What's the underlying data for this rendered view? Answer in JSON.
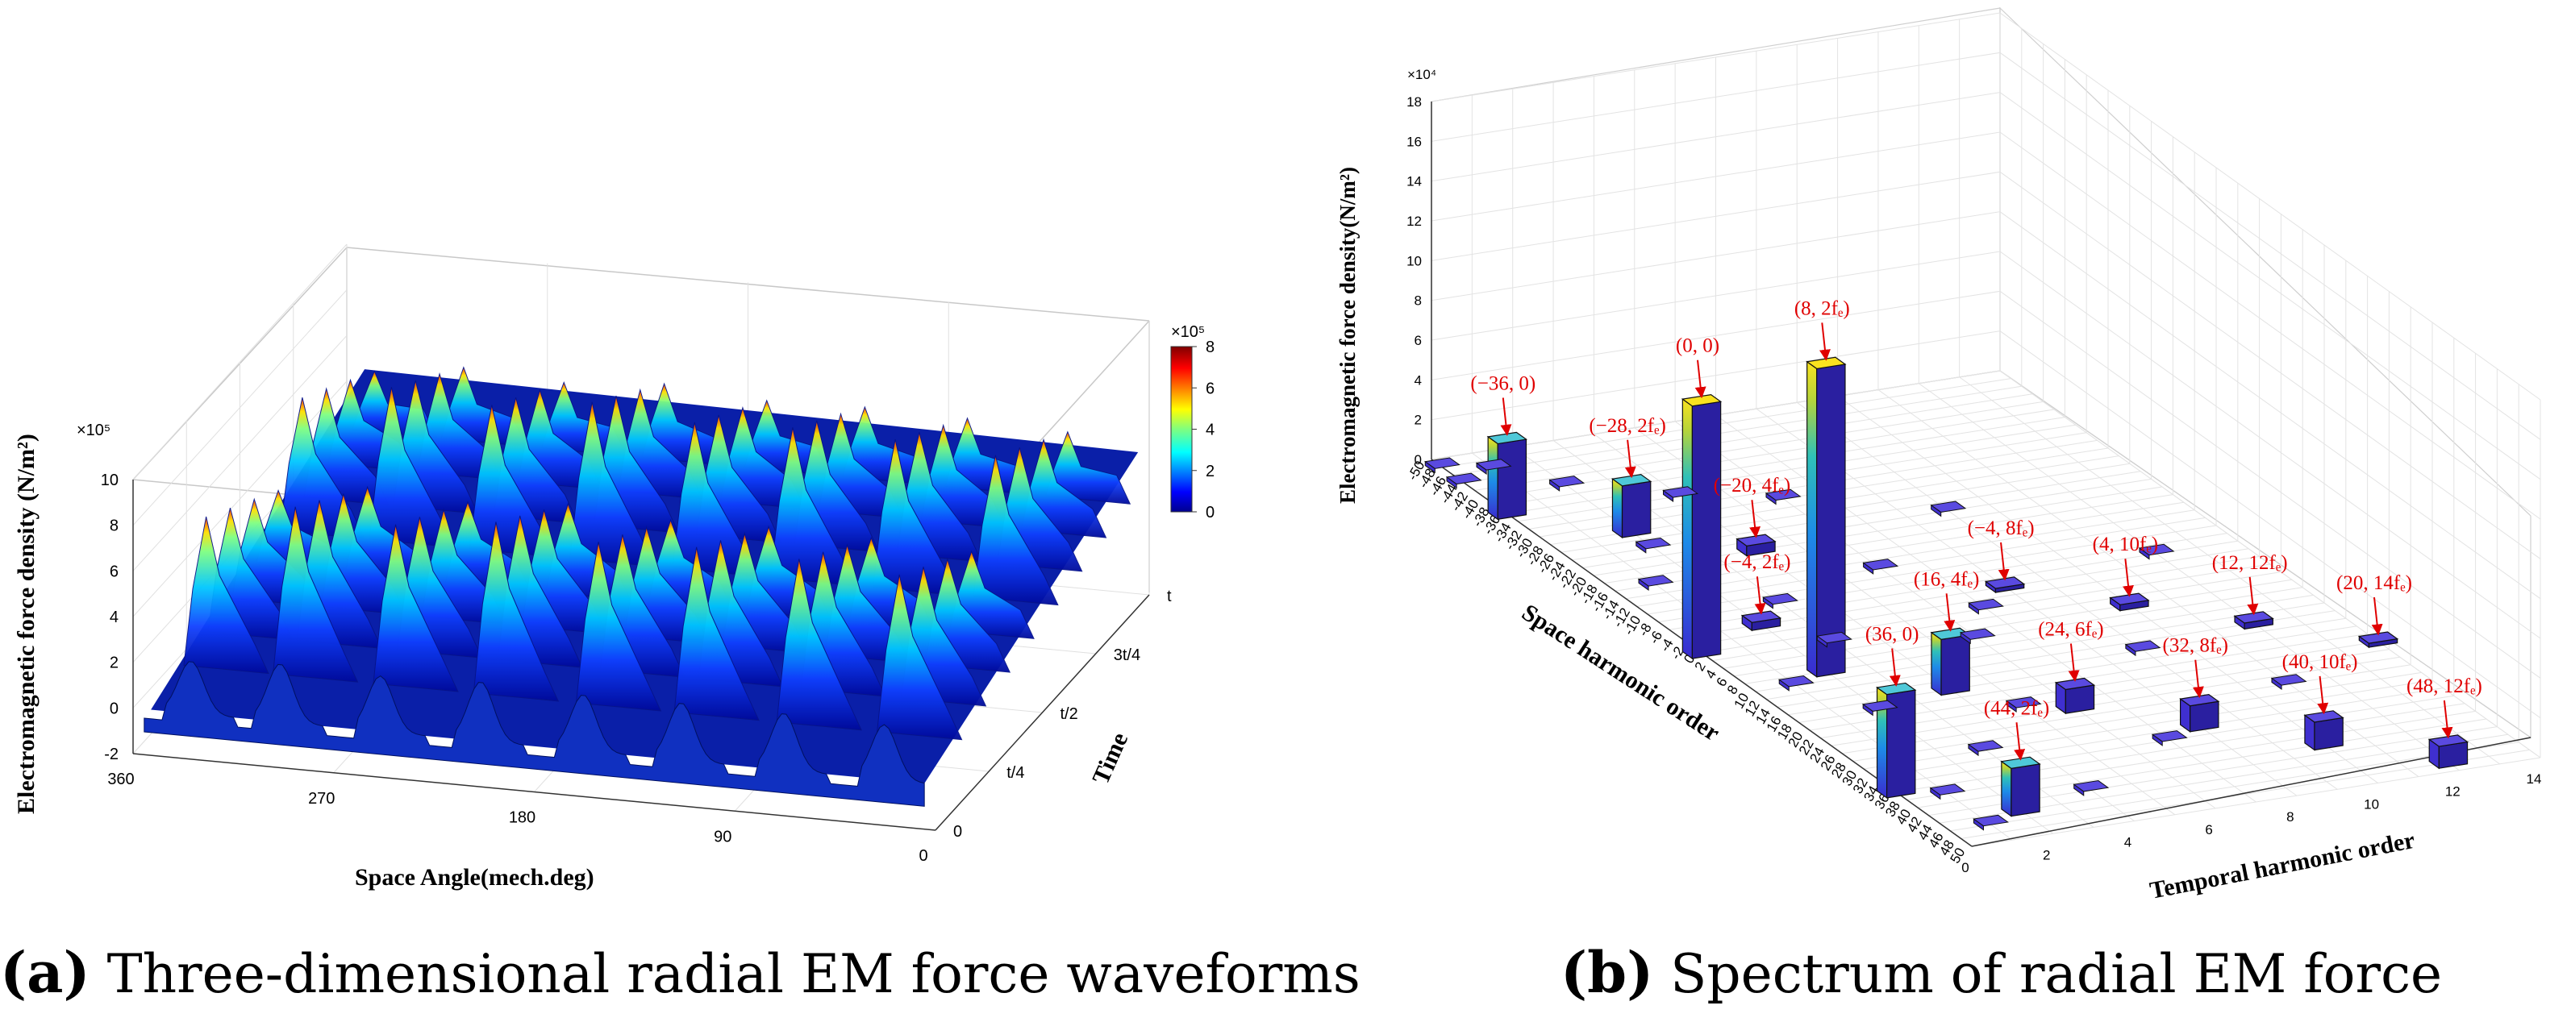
{
  "captions": {
    "a": {
      "letter": "(a)",
      "text": " Three-dimensional radial EM force waveforms"
    },
    "b": {
      "letter": "(b)",
      "text": " Spectrum of radial EM force"
    }
  },
  "chart_data": [
    {
      "panel": "a",
      "type": "area",
      "title": "",
      "xlabel": "Space Angle(mech.deg)",
      "ylabel": "Electromagnetic force density (N/m²)",
      "zlabel": "Time",
      "exponent_label": "×10⁵",
      "x_ticks": [
        "360",
        "270",
        "180",
        "90",
        "0"
      ],
      "y_ticks": [
        "-2",
        "0",
        "2",
        "4",
        "6",
        "8",
        "10"
      ],
      "t_ticks": [
        "0",
        "t/4",
        "t/2",
        "3t/4",
        "t"
      ],
      "xlim": [
        0,
        360
      ],
      "ylim": [
        -2,
        10
      ],
      "colorbar": {
        "exponent_label": "×10⁵",
        "ticks": [
          "0",
          "2",
          "4",
          "6",
          "8"
        ],
        "range": [
          0,
          8
        ],
        "colormap": "jet"
      },
      "series": [
        {
          "x": [
            338,
            298,
            253,
            208,
            162,
            118,
            72,
            27
          ],
          "peak_values": [
            8.2,
            9.1,
            8.7,
            9.3,
            8.8,
            9.0,
            8.9,
            8.6
          ]
        }
      ]
    },
    {
      "panel": "b",
      "type": "bar",
      "title": "",
      "xlabel": "Temporal harmonic order",
      "ylabel": "Electromagnetic force density(N/m²)",
      "zlabel": "Space harmonic order",
      "exponent_label": "×10⁴",
      "z_ticks": [
        "0",
        "2",
        "4",
        "6",
        "8",
        "10",
        "12",
        "14",
        "16",
        "18"
      ],
      "t_ticks": [
        "0",
        "2",
        "4",
        "6",
        "8",
        "10",
        "12",
        "14"
      ],
      "s_ticks": [
        "-50",
        "-48",
        "-46",
        "-44",
        "-42",
        "-40",
        "-38",
        "-36",
        "-34",
        "-32",
        "-30",
        "-28",
        "-26",
        "-24",
        "-22",
        "-20",
        "-18",
        "-16",
        "-14",
        "-12",
        "-10",
        "-8",
        "-6",
        "-4",
        "-2",
        "0",
        "2",
        "4",
        "6",
        "8",
        "10",
        "12",
        "14",
        "16",
        "18",
        "20",
        "22",
        "24",
        "26",
        "28",
        "30",
        "32",
        "34",
        "36",
        "38",
        "40",
        "42",
        "44",
        "46",
        "48",
        "50"
      ],
      "zlim": [
        0,
        18
      ],
      "bars": [
        {
          "space": -36,
          "time": 0,
          "value": 3.8,
          "label": "(−36, 0)"
        },
        {
          "space": -28,
          "time": 2,
          "value": 2.6,
          "label": "(−28, 2fₑ)"
        },
        {
          "space": 0,
          "time": 0,
          "value": 12.7,
          "label": "(0, 0)"
        },
        {
          "space": 8,
          "time": 2,
          "value": 15.5,
          "label": "(8, 2fₑ)"
        },
        {
          "space": -20,
          "time": 4,
          "value": 0.5,
          "label": "(−20, 4fₑ)"
        },
        {
          "space": -4,
          "time": 2,
          "value": 0.4,
          "label": "(−4, 2fₑ)"
        },
        {
          "space": 16,
          "time": 4,
          "value": 2.8,
          "label": "(16, 4fₑ)"
        },
        {
          "space": -4,
          "time": 8,
          "value": 0.2,
          "label": "(−4, 8fₑ)"
        },
        {
          "space": 4,
          "time": 10,
          "value": 0.3,
          "label": "(4, 10fₑ)"
        },
        {
          "space": 36,
          "time": 0,
          "value": 5.2,
          "label": "(36, 0)"
        },
        {
          "space": 24,
          "time": 6,
          "value": 1.2,
          "label": "(24, 6fₑ)"
        },
        {
          "space": 12,
          "time": 12,
          "value": 0.3,
          "label": "(12, 12fₑ)"
        },
        {
          "space": 32,
          "time": 8,
          "value": 1.3,
          "label": "(32, 8fₑ)"
        },
        {
          "space": 20,
          "time": 14,
          "value": 0.2,
          "label": "(20, 14fₑ)"
        },
        {
          "space": 40,
          "time": 10,
          "value": 1.4,
          "label": "(40, 10fₑ)"
        },
        {
          "space": 44,
          "time": 2,
          "value": 2.4,
          "label": "(44, 2fₑ)"
        },
        {
          "space": 48,
          "time": 12,
          "value": 1.1,
          "label": "(48, 12fₑ)"
        }
      ]
    }
  ]
}
